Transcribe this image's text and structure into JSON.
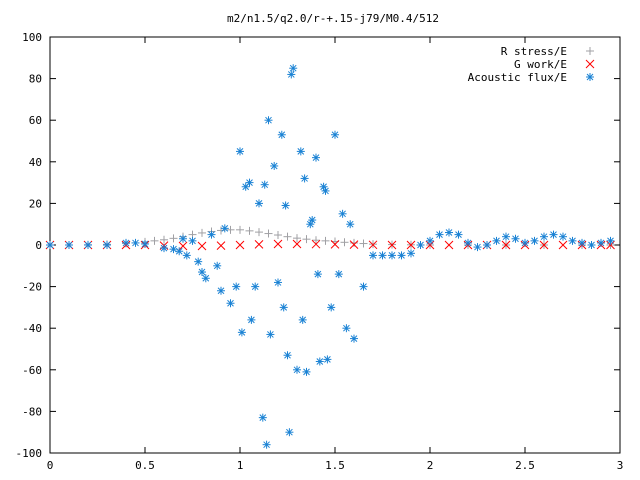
{
  "chart_data": {
    "type": "scatter",
    "title": "m2/n1.5/q2.0/r-+.15-j79/M0.4/512",
    "xlabel": "",
    "ylabel": "",
    "xlim": [
      0,
      3
    ],
    "ylim": [
      -100,
      100
    ],
    "x_ticks": [
      "0",
      "0.5",
      "1",
      "1.5",
      "2",
      "2.5",
      "3"
    ],
    "y_ticks": [
      "100",
      "80",
      "60",
      "40",
      "20",
      "0",
      "-20",
      "-40",
      "-60",
      "-80",
      "-100"
    ],
    "grid": false,
    "legend_position": "top-right",
    "series": [
      {
        "name": "R stress/E",
        "marker": "plus",
        "color": "#a0a0a4",
        "x": [
          0.0,
          0.1,
          0.2,
          0.3,
          0.4,
          0.5,
          0.55,
          0.6,
          0.65,
          0.7,
          0.75,
          0.8,
          0.85,
          0.9,
          0.95,
          1.0,
          1.05,
          1.1,
          1.15,
          1.2,
          1.25,
          1.3,
          1.35,
          1.4,
          1.45,
          1.5,
          1.55,
          1.6,
          1.65,
          1.7,
          1.8,
          1.9,
          2.0,
          2.2,
          2.4,
          2.6,
          2.8,
          2.95
        ],
        "y": [
          0.0,
          0.0,
          0.1,
          0.3,
          0.8,
          1.5,
          2.0,
          2.5,
          3.2,
          4.0,
          5.0,
          5.8,
          6.5,
          7.0,
          7.3,
          7.3,
          6.8,
          6.2,
          5.5,
          4.8,
          4.0,
          3.3,
          2.8,
          2.3,
          2.0,
          1.7,
          1.3,
          1.0,
          0.7,
          0.4,
          0.2,
          0.1,
          0.0,
          0.0,
          0.0,
          0.0,
          0.0,
          0.0
        ]
      },
      {
        "name": "G work/E",
        "marker": "cross",
        "color": "#ff0000",
        "x": [
          0.0,
          0.1,
          0.2,
          0.3,
          0.4,
          0.5,
          0.6,
          0.7,
          0.8,
          0.9,
          1.0,
          1.1,
          1.2,
          1.3,
          1.4,
          1.5,
          1.6,
          1.7,
          1.8,
          1.9,
          2.0,
          2.1,
          2.2,
          2.3,
          2.4,
          2.5,
          2.6,
          2.7,
          2.8,
          2.9,
          2.95
        ],
        "y": [
          0.0,
          0.0,
          0.0,
          0.0,
          0.0,
          0.0,
          -0.3,
          -0.5,
          -0.5,
          -0.3,
          0.0,
          0.3,
          0.5,
          0.5,
          0.4,
          0.3,
          0.2,
          0.1,
          0.0,
          0.0,
          0.0,
          0.0,
          0.0,
          0.0,
          0.0,
          0.0,
          0.0,
          0.0,
          0.0,
          0.0,
          0.0
        ]
      },
      {
        "name": "Acoustic flux/E",
        "marker": "asterisk",
        "color": "#1a82d4",
        "x": [
          0.0,
          0.1,
          0.2,
          0.3,
          0.4,
          0.45,
          0.5,
          0.6,
          0.65,
          0.68,
          0.7,
          0.72,
          0.75,
          0.78,
          0.8,
          0.82,
          0.85,
          0.88,
          0.9,
          0.92,
          0.95,
          0.98,
          1.0,
          1.01,
          1.03,
          1.05,
          1.06,
          1.08,
          1.1,
          1.12,
          1.13,
          1.14,
          1.15,
          1.16,
          1.18,
          1.2,
          1.22,
          1.23,
          1.24,
          1.25,
          1.26,
          1.27,
          1.28,
          1.3,
          1.32,
          1.33,
          1.34,
          1.35,
          1.37,
          1.38,
          1.4,
          1.41,
          1.42,
          1.44,
          1.45,
          1.46,
          1.48,
          1.5,
          1.52,
          1.54,
          1.56,
          1.58,
          1.6,
          1.65,
          1.7,
          1.75,
          1.8,
          1.85,
          1.9,
          1.95,
          2.0,
          2.05,
          2.1,
          2.15,
          2.2,
          2.25,
          2.3,
          2.35,
          2.4,
          2.45,
          2.5,
          2.55,
          2.6,
          2.65,
          2.7,
          2.75,
          2.8,
          2.85,
          2.9,
          2.95
        ],
        "y": [
          0.0,
          0.0,
          0.0,
          0.0,
          1.0,
          1.0,
          0.5,
          -1.5,
          -2.0,
          -3.0,
          3.0,
          -5.0,
          2.0,
          -8.0,
          -13.0,
          -16.0,
          5.0,
          -10.0,
          -22.0,
          8.0,
          -28.0,
          -20.0,
          45.0,
          -42.0,
          28.0,
          30.0,
          -36.0,
          -20.0,
          20.0,
          -83.0,
          29.0,
          -96.0,
          60.0,
          -43.0,
          38.0,
          -18.0,
          53.0,
          -30.0,
          19.0,
          -53.0,
          -90.0,
          82.0,
          85.0,
          -60.0,
          45.0,
          -36.0,
          32.0,
          -61.0,
          10.0,
          12.0,
          42.0,
          -14.0,
          -56.0,
          28.0,
          26.0,
          -55.0,
          -30.0,
          53.0,
          -14.0,
          15.0,
          -40.0,
          10.0,
          -45.0,
          -20.0,
          -5.0,
          -5.0,
          -5.0,
          -5.0,
          -4.0,
          0.0,
          2.0,
          5.0,
          6.0,
          5.0,
          1.0,
          -1.0,
          0.0,
          2.0,
          4.0,
          3.0,
          1.0,
          2.0,
          4.0,
          5.0,
          4.0,
          2.0,
          1.0,
          0.0,
          1.0,
          2.0
        ]
      }
    ]
  }
}
